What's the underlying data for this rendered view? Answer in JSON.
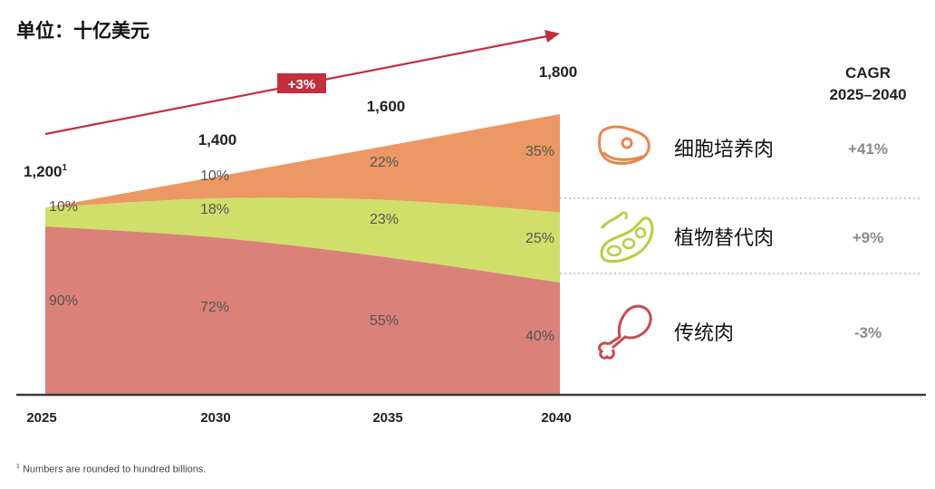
{
  "unit": "单位：十亿美元",
  "footnote_mark": "1",
  "footnote": "Numbers are rounded to hundred billions.",
  "growth_badge": "+3%",
  "cagr_header": [
    "CAGR",
    "2025–2040"
  ],
  "colors": {
    "cultivated": "#ec9864",
    "plant": "#d0df6a",
    "traditional": "#da817a",
    "accent": "#c0303d",
    "icon_orange": "#e8864b",
    "icon_green": "#b5cf3c",
    "icon_red": "#c94a4f"
  },
  "chart_data": {
    "type": "area",
    "stacked": true,
    "x": [
      "2025",
      "2030",
      "2035",
      "2040"
    ],
    "totals": [
      1200,
      1400,
      1600,
      1800
    ],
    "total_labels": [
      "1,200",
      "1,400",
      "1,600",
      "1,800"
    ],
    "total_label_marks": [
      "1",
      "",
      "",
      ""
    ],
    "series": [
      {
        "name": "传统肉",
        "key": "traditional",
        "percent": [
          90,
          72,
          55,
          40
        ],
        "labels": [
          "90%",
          "72%",
          "55%",
          "40%"
        ],
        "cagr": "-3%",
        "icon": "drumstick-icon"
      },
      {
        "name": "植物替代肉",
        "key": "plant",
        "percent": [
          10,
          18,
          23,
          25
        ],
        "labels": [
          "10%",
          "18%",
          "23%",
          "25%"
        ],
        "cagr": "+9%",
        "icon": "soybean-pod-icon"
      },
      {
        "name": "细胞培养肉",
        "key": "cultivated",
        "percent": [
          0,
          10,
          22,
          35
        ],
        "labels": [
          "",
          "10%",
          "22%",
          "35%"
        ],
        "cagr": "+41%",
        "icon": "steak-icon"
      }
    ],
    "ylim": [
      0,
      1800
    ]
  }
}
